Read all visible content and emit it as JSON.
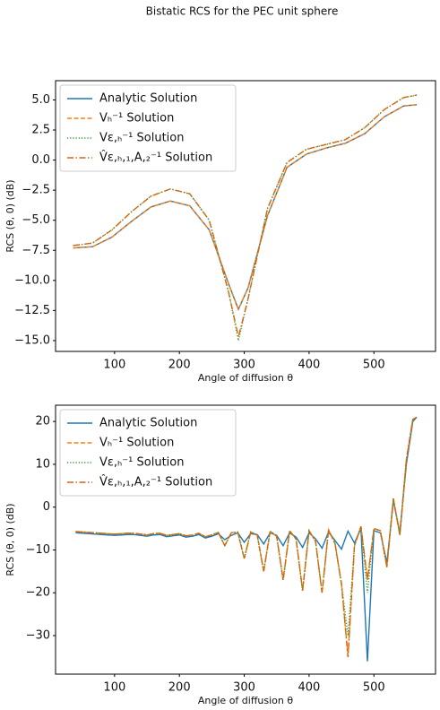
{
  "title": "Bistatic RCS for the PEC unit sphere",
  "chart_data": [
    {
      "type": "line",
      "xlabel": "Angle of diffusion θ",
      "ylabel": "RCS (θ, 0) (dB)",
      "legend": "upper left",
      "grid": false,
      "xlim": [
        9,
        595
      ],
      "xticks": [
        100,
        200,
        300,
        400,
        500
      ],
      "ylim": [
        -15.9,
        6.6
      ],
      "yticks": [
        {
          "value": 5,
          "label": "5.0"
        },
        {
          "value": 2.5,
          "label": "2.5"
        },
        {
          "value": 0,
          "label": "0.0"
        },
        {
          "value": -2.5,
          "label": "−2.5"
        },
        {
          "value": -5,
          "label": "−5.0"
        },
        {
          "value": -7.5,
          "label": "−7.5"
        },
        {
          "value": -10,
          "label": "−10.0"
        },
        {
          "value": -12.5,
          "label": "−12.5"
        },
        {
          "value": -15,
          "label": "−15.0"
        }
      ],
      "x": [
        36,
        66,
        96,
        126,
        156,
        186,
        216,
        246,
        276,
        291,
        306,
        336,
        366,
        396,
        426,
        456,
        486,
        516,
        546,
        566
      ],
      "series": [
        {
          "name": "Analytic Solution",
          "color": "#1f77b4",
          "linestyle": "solid",
          "values": [
            -7.3,
            -7.2,
            -6.4,
            -5.1,
            -3.9,
            -3.4,
            -3.8,
            -5.8,
            -10.3,
            -12.4,
            -10.6,
            -4.6,
            -0.6,
            0.5,
            1.0,
            1.4,
            2.2,
            3.6,
            4.5,
            4.6
          ]
        },
        {
          "name": "Vₕ⁻¹ Solution",
          "color": "#ff7f0e",
          "linestyle": "dashed",
          "values": [
            -7.3,
            -7.2,
            -6.4,
            -5.1,
            -3.9,
            -3.4,
            -3.8,
            -5.8,
            -10.3,
            -12.4,
            -10.6,
            -4.6,
            -0.6,
            0.5,
            1.0,
            1.4,
            2.2,
            3.6,
            4.5,
            4.6
          ]
        },
        {
          "name": "Vε,ₕ⁻¹ Solution",
          "color": "#2ca02c",
          "linestyle": "dotted",
          "values": [
            -7.1,
            -6.9,
            -5.8,
            -4.3,
            -3.0,
            -2.4,
            -2.8,
            -5.0,
            -11.0,
            -15.0,
            -11.5,
            -4.0,
            -0.2,
            0.9,
            1.3,
            1.7,
            2.7,
            4.2,
            5.2,
            5.4
          ]
        },
        {
          "name": "V̂ε,ₕ,₁,A,₂⁻¹ Solution",
          "color": "#d9640e",
          "linestyle": "dashdot",
          "values": [
            -7.1,
            -6.9,
            -5.8,
            -4.3,
            -3.0,
            -2.4,
            -2.8,
            -5.0,
            -11.0,
            -14.7,
            -11.5,
            -4.0,
            -0.2,
            0.9,
            1.3,
            1.7,
            2.7,
            4.2,
            5.2,
            5.4
          ]
        }
      ]
    },
    {
      "type": "line",
      "xlabel": "Angle of diffusion θ",
      "ylabel": "RCS (θ, 0) (dB)",
      "legend": "upper left",
      "grid": false,
      "xlim": [
        9,
        595
      ],
      "xticks": [
        100,
        200,
        300,
        400,
        500
      ],
      "ylim": [
        -39,
        23.8
      ],
      "yticks": [
        20,
        10,
        0,
        {
          "value": -10,
          "label": "−10"
        },
        {
          "value": -20,
          "label": "−20"
        },
        {
          "value": -30,
          "label": "−30"
        }
      ],
      "x": [
        40,
        50,
        60,
        70,
        80,
        90,
        100,
        110,
        120,
        130,
        140,
        150,
        160,
        170,
        180,
        190,
        200,
        210,
        220,
        230,
        240,
        250,
        260,
        270,
        280,
        290,
        300,
        310,
        320,
        330,
        340,
        350,
        360,
        370,
        380,
        390,
        400,
        410,
        420,
        430,
        440,
        450,
        460,
        470,
        480,
        490,
        500,
        510,
        520,
        530,
        540,
        550,
        560,
        566
      ],
      "series": [
        {
          "name": "Analytic Solution",
          "color": "#1f77b4",
          "linestyle": "solid",
          "values": [
            -6.0,
            -6.1,
            -6.2,
            -6.3,
            -6.4,
            -6.5,
            -6.6,
            -6.5,
            -6.4,
            -6.4,
            -6.6,
            -6.8,
            -6.5,
            -6.4,
            -6.9,
            -6.7,
            -6.5,
            -7.0,
            -6.8,
            -6.4,
            -7.2,
            -6.8,
            -6.2,
            -7.6,
            -6.6,
            -6.0,
            -8.2,
            -6.2,
            -6.4,
            -8.6,
            -6.0,
            -6.6,
            -9.0,
            -6.0,
            -7.0,
            -9.4,
            -6.0,
            -7.4,
            -9.6,
            -5.8,
            -7.8,
            -9.8,
            -5.6,
            -8.4,
            -5.0,
            -36.0,
            -5.5,
            -6.0,
            -13.0,
            1.5,
            -6.0,
            10.0,
            20.0,
            21.0
          ]
        },
        {
          "name": "Vₕ⁻¹ Solution",
          "color": "#ff7f0e",
          "linestyle": "dashed",
          "values": [
            -5.7,
            -5.8,
            -5.9,
            -6.0,
            -6.1,
            -6.2,
            -6.3,
            -6.2,
            -6.1,
            -6.1,
            -6.3,
            -6.5,
            -6.2,
            -6.1,
            -6.6,
            -6.4,
            -6.2,
            -6.7,
            -6.5,
            -6.1,
            -6.9,
            -6.5,
            -5.9,
            -9.0,
            -6.0,
            -5.8,
            -12.0,
            -5.8,
            -6.5,
            -15.0,
            -5.6,
            -6.8,
            -17.0,
            -5.5,
            -7.5,
            -19.5,
            -5.5,
            -8.0,
            -20.0,
            -5.3,
            -8.5,
            -18.0,
            -35.0,
            -9.0,
            -4.5,
            -17.0,
            -5.0,
            -5.5,
            -14.0,
            2.0,
            -6.5,
            11.0,
            20.5,
            21.0
          ]
        },
        {
          "name": "Vε,ₕ⁻¹ Solution",
          "color": "#2ca02c",
          "linestyle": "dotted",
          "values": [
            -5.7,
            -5.8,
            -5.9,
            -6.0,
            -6.1,
            -6.2,
            -6.3,
            -6.2,
            -6.1,
            -6.1,
            -6.3,
            -6.5,
            -6.2,
            -6.1,
            -6.6,
            -6.4,
            -6.2,
            -6.7,
            -6.5,
            -6.1,
            -6.9,
            -6.5,
            -5.9,
            -9.0,
            -6.0,
            -5.8,
            -12.0,
            -5.8,
            -6.5,
            -15.0,
            -5.6,
            -6.8,
            -17.0,
            -5.5,
            -7.5,
            -19.5,
            -5.5,
            -8.0,
            -20.0,
            -5.3,
            -8.5,
            -18.0,
            -30.0,
            -9.0,
            -4.5,
            -20.0,
            -5.0,
            -5.5,
            -14.0,
            2.0,
            -6.5,
            11.0,
            20.5,
            21.0
          ]
        },
        {
          "name": "V̂ε,ₕ,₁,A,₂⁻¹ Solution",
          "color": "#d9640e",
          "linestyle": "dashdot",
          "values": [
            -5.7,
            -5.8,
            -5.9,
            -6.0,
            -6.1,
            -6.2,
            -6.3,
            -6.2,
            -6.1,
            -6.1,
            -6.3,
            -6.5,
            -6.2,
            -6.1,
            -6.6,
            -6.4,
            -6.2,
            -6.7,
            -6.5,
            -6.1,
            -6.9,
            -6.5,
            -5.9,
            -9.0,
            -6.0,
            -5.8,
            -12.0,
            -5.8,
            -6.5,
            -15.0,
            -5.6,
            -6.8,
            -17.0,
            -5.5,
            -7.5,
            -19.5,
            -5.5,
            -8.0,
            -20.0,
            -5.3,
            -8.5,
            -18.0,
            -35.0,
            -9.0,
            -4.5,
            -17.0,
            -5.0,
            -5.5,
            -14.0,
            2.0,
            -6.5,
            11.0,
            20.5,
            21.0
          ]
        }
      ]
    }
  ]
}
